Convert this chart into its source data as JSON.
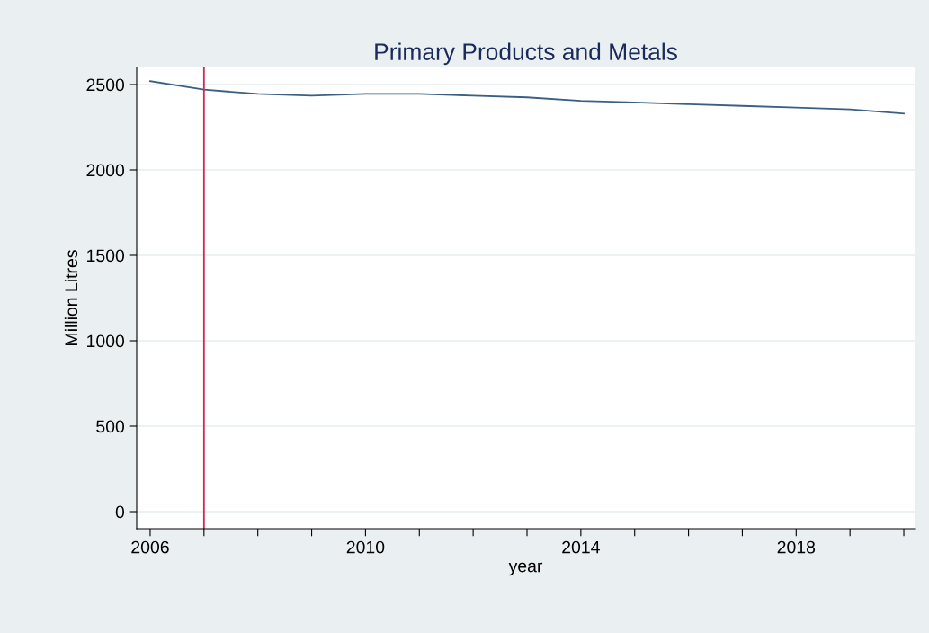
{
  "chart_data": {
    "type": "line",
    "title": "Primary Products and Metals",
    "xlabel": "year",
    "ylabel": "Million Litres",
    "x": [
      2006,
      2007,
      2008,
      2009,
      2010,
      2011,
      2012,
      2013,
      2014,
      2015,
      2016,
      2017,
      2018,
      2019,
      2020
    ],
    "series": [
      {
        "color": "#3a5f85",
        "values": [
          2520,
          2470,
          2445,
          2435,
          2445,
          2445,
          2435,
          2425,
          2405,
          2395,
          2385,
          2375,
          2365,
          2355,
          2330
        ]
      }
    ],
    "xlim": [
      2005.75,
      2020.2
    ],
    "ylim": [
      -100,
      2600
    ],
    "xticks": [
      2006,
      {
        "value": 2007,
        "label": null
      },
      {
        "value": 2008,
        "label": null
      },
      {
        "value": 2009,
        "label": null
      },
      2010,
      {
        "value": 2011,
        "label": null
      },
      {
        "value": 2012,
        "label": null
      },
      {
        "value": 2013,
        "label": null
      },
      2014,
      {
        "value": 2015,
        "label": null
      },
      {
        "value": 2016,
        "label": null
      },
      {
        "value": 2017,
        "label": null
      },
      2018,
      {
        "value": 2019,
        "label": null
      },
      {
        "value": 2020,
        "label": null
      }
    ],
    "yticks": [
      0,
      500,
      1000,
      1500,
      2000,
      2500
    ],
    "grid": "y",
    "line_style": "solid",
    "marker": "none",
    "ref_lines": [
      {
        "axis": "x",
        "value": 2007,
        "color": "#d0284f"
      }
    ]
  }
}
